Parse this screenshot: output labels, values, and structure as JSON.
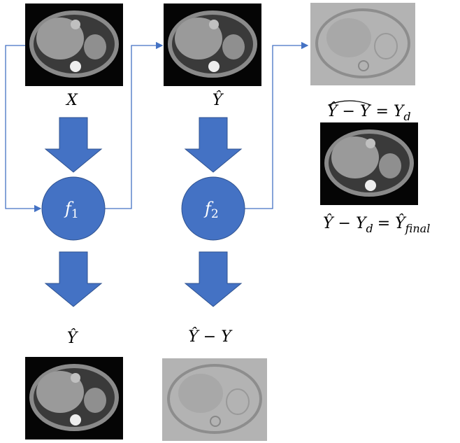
{
  "labels": {
    "input": "X",
    "output_1": "Ŷ",
    "output_2": "Ŷ",
    "residual": "Ŷ  − Y"
  },
  "nodes": [
    {
      "symbol": "f",
      "subscript": "1"
    },
    {
      "symbol": "f",
      "subscript": "2"
    }
  ],
  "residual_estimate": {
    "lhs": "Ŷ − Y",
    "rhs": "= Y",
    "subscript": "d"
  },
  "final": {
    "lhs": "Ŷ  −  Y",
    "lhs_subscript": "d",
    "rhs": "= Ŷ",
    "rhs_subscript": "final"
  }
}
